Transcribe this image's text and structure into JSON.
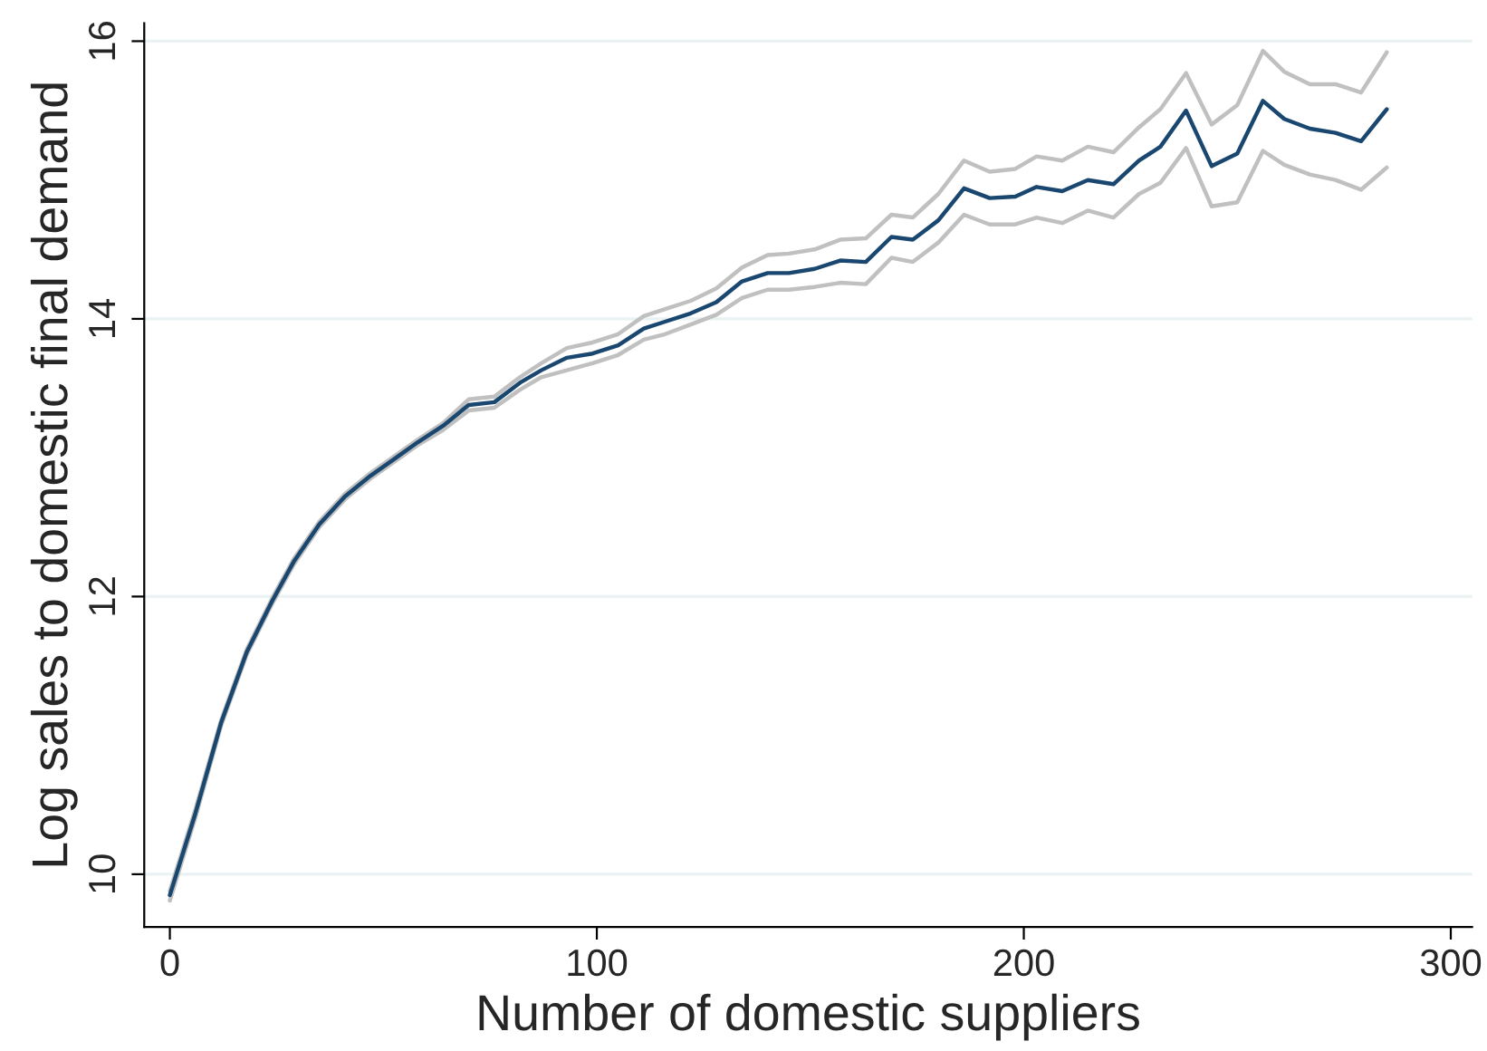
{
  "chart_data": {
    "type": "line",
    "xlabel": "Number of domestic suppliers",
    "ylabel": "Log sales to domestic final demand",
    "x": [
      0,
      6,
      12,
      18,
      24,
      29,
      35,
      41,
      47,
      53,
      58,
      64,
      70,
      76,
      82,
      87,
      93,
      99,
      105,
      111,
      116,
      122,
      128,
      134,
      140,
      145,
      151,
      157,
      163,
      169,
      174,
      180,
      186,
      192,
      198,
      203,
      209,
      215,
      221,
      227,
      232,
      238,
      244,
      250,
      256,
      261,
      267,
      273,
      279,
      285
    ],
    "series": [
      {
        "color": "#c0c0c0",
        "values": [
          9.88,
          10.47,
          11.11,
          11.62,
          11.99,
          12.27,
          12.54,
          12.74,
          12.89,
          13.02,
          13.13,
          13.25,
          13.42,
          13.44,
          13.58,
          13.68,
          13.79,
          13.83,
          13.89,
          14.02,
          14.07,
          14.13,
          14.22,
          14.37,
          14.46,
          14.47,
          14.5,
          14.57,
          14.58,
          14.75,
          14.73,
          14.9,
          15.14,
          15.06,
          15.08,
          15.17,
          15.14,
          15.24,
          15.2,
          15.38,
          15.51,
          15.77,
          15.4,
          15.54,
          15.93,
          15.78,
          15.69,
          15.69,
          15.63,
          15.92
        ]
      },
      {
        "color": "#c0c0c0",
        "values": [
          9.81,
          10.41,
          11.07,
          11.58,
          11.95,
          12.23,
          12.5,
          12.7,
          12.85,
          12.98,
          13.09,
          13.2,
          13.34,
          13.36,
          13.49,
          13.58,
          13.63,
          13.68,
          13.74,
          13.85,
          13.89,
          13.96,
          14.03,
          14.15,
          14.21,
          14.21,
          14.23,
          14.26,
          14.25,
          14.44,
          14.41,
          14.55,
          14.75,
          14.68,
          14.68,
          14.73,
          14.69,
          14.78,
          14.73,
          14.9,
          14.98,
          15.23,
          14.81,
          14.84,
          15.21,
          15.11,
          15.04,
          15.0,
          14.93,
          15.09
        ]
      },
      {
        "color": "#1a476f",
        "values": [
          9.85,
          10.44,
          11.09,
          11.6,
          11.97,
          12.25,
          12.52,
          12.72,
          12.87,
          13.0,
          13.11,
          13.23,
          13.38,
          13.4,
          13.54,
          13.63,
          13.72,
          13.75,
          13.81,
          13.93,
          13.98,
          14.04,
          14.12,
          14.27,
          14.33,
          14.33,
          14.36,
          14.42,
          14.41,
          14.59,
          14.57,
          14.71,
          14.94,
          14.87,
          14.88,
          14.95,
          14.92,
          15.0,
          14.97,
          15.14,
          15.24,
          15.5,
          15.1,
          15.19,
          15.57,
          15.44,
          15.37,
          15.34,
          15.28,
          15.51
        ]
      }
    ],
    "xlim": [
      -6,
      305
    ],
    "ylim": [
      9.62,
      16.13
    ],
    "xticks": [
      0,
      100,
      200,
      300
    ],
    "yticks": [
      10,
      12,
      14,
      16
    ],
    "grid": "y",
    "legend": false,
    "marker": "none",
    "line_style": "solid"
  }
}
